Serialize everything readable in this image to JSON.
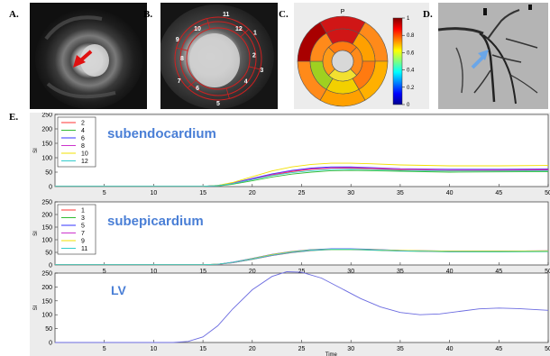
{
  "panel_labels": {
    "a": "A.",
    "b": "B.",
    "c": "C.",
    "d": "D.",
    "e": "E."
  },
  "panel_b_segments": [
    "11",
    "12",
    "1",
    "2",
    "3",
    "4",
    "5",
    "6",
    "7",
    "8",
    "9",
    "10"
  ],
  "bullseye": {
    "title": "P",
    "colorbar_ticks": [
      "1",
      "0.8",
      "0.6",
      "0.4",
      "0.2",
      "0"
    ]
  },
  "colors": {
    "plot_title": "#4a7fd6",
    "figure_bg": "#ececec",
    "arrow_red": "#e01010",
    "arrow_blue": "#6aa6e8"
  },
  "chart_data": [
    {
      "type": "line",
      "title": "subendocardium",
      "ylabel": "SI",
      "xlabel": "",
      "xlim": [
        0,
        50
      ],
      "ylim": [
        0,
        250
      ],
      "xticks": [
        5,
        10,
        15,
        20,
        25,
        30,
        35,
        40,
        45,
        50
      ],
      "yticks": [
        0,
        50,
        100,
        150,
        200,
        250
      ],
      "legend_position": "top-left",
      "series": [
        {
          "name": "2",
          "color": "#ff3333",
          "points": [
            [
              0,
              1
            ],
            [
              15,
              1
            ],
            [
              16.5,
              3
            ],
            [
              18,
              10
            ],
            [
              20,
              25
            ],
            [
              22,
              40
            ],
            [
              24,
              52
            ],
            [
              26,
              60
            ],
            [
              28,
              64
            ],
            [
              30,
              64
            ],
            [
              32,
              62
            ],
            [
              35,
              58
            ],
            [
              40,
              55
            ],
            [
              45,
              56
            ],
            [
              50,
              57
            ]
          ]
        },
        {
          "name": "4",
          "color": "#33bb33",
          "points": [
            [
              0,
              1
            ],
            [
              15,
              1
            ],
            [
              16.5,
              2
            ],
            [
              18,
              8
            ],
            [
              20,
              20
            ],
            [
              22,
              33
            ],
            [
              24,
              43
            ],
            [
              26,
              50
            ],
            [
              28,
              55
            ],
            [
              30,
              56
            ],
            [
              32,
              55
            ],
            [
              35,
              53
            ],
            [
              40,
              50
            ],
            [
              45,
              51
            ],
            [
              50,
              52
            ]
          ]
        },
        {
          "name": "6",
          "color": "#3333ff",
          "points": [
            [
              0,
              1
            ],
            [
              15,
              1
            ],
            [
              16.5,
              4
            ],
            [
              18,
              12
            ],
            [
              20,
              28
            ],
            [
              22,
              44
            ],
            [
              24,
              56
            ],
            [
              26,
              64
            ],
            [
              28,
              68
            ],
            [
              30,
              68
            ],
            [
              32,
              66
            ],
            [
              35,
              62
            ],
            [
              40,
              60
            ],
            [
              45,
              60
            ],
            [
              50,
              61
            ]
          ]
        },
        {
          "name": "8",
          "color": "#cc33cc",
          "points": [
            [
              0,
              1
            ],
            [
              15,
              1
            ],
            [
              16.5,
              3
            ],
            [
              18,
              11
            ],
            [
              20,
              26
            ],
            [
              22,
              42
            ],
            [
              24,
              54
            ],
            [
              26,
              62
            ],
            [
              28,
              65
            ],
            [
              30,
              66
            ],
            [
              32,
              64
            ],
            [
              35,
              61
            ],
            [
              40,
              58
            ],
            [
              45,
              58
            ],
            [
              50,
              59
            ]
          ]
        },
        {
          "name": "10",
          "color": "#f2e000",
          "points": [
            [
              0,
              1
            ],
            [
              15,
              1
            ],
            [
              16.5,
              4
            ],
            [
              18,
              14
            ],
            [
              20,
              34
            ],
            [
              22,
              54
            ],
            [
              24,
              68
            ],
            [
              26,
              77
            ],
            [
              28,
              81
            ],
            [
              30,
              81
            ],
            [
              32,
              79
            ],
            [
              35,
              75
            ],
            [
              40,
              72
            ],
            [
              45,
              72
            ],
            [
              50,
              73
            ]
          ]
        },
        {
          "name": "12",
          "color": "#33cccc",
          "points": [
            [
              0,
              1
            ],
            [
              15,
              1
            ],
            [
              16.5,
              3
            ],
            [
              18,
              10
            ],
            [
              20,
              24
            ],
            [
              22,
              38
            ],
            [
              24,
              48
            ],
            [
              26,
              55
            ],
            [
              28,
              59
            ],
            [
              30,
              60
            ],
            [
              32,
              59
            ],
            [
              35,
              56
            ],
            [
              40,
              54
            ],
            [
              45,
              54
            ],
            [
              50,
              55
            ]
          ]
        }
      ]
    },
    {
      "type": "line",
      "title": "subepicardium",
      "ylabel": "SI",
      "xlabel": "",
      "xlim": [
        0,
        50
      ],
      "ylim": [
        0,
        250
      ],
      "xticks": [
        5,
        10,
        15,
        20,
        25,
        30,
        35,
        40,
        45,
        50
      ],
      "yticks": [
        0,
        50,
        100,
        150,
        200,
        250
      ],
      "legend_position": "top-left",
      "series": [
        {
          "name": "1",
          "color": "#ff3333",
          "points": [
            [
              0,
              1
            ],
            [
              15,
              1
            ],
            [
              16.5,
              3
            ],
            [
              18,
              10
            ],
            [
              20,
              24
            ],
            [
              22,
              40
            ],
            [
              24,
              52
            ],
            [
              26,
              60
            ],
            [
              28,
              63
            ],
            [
              30,
              63
            ],
            [
              32,
              61
            ],
            [
              35,
              57
            ],
            [
              40,
              54
            ],
            [
              45,
              55
            ],
            [
              50,
              56
            ]
          ]
        },
        {
          "name": "3",
          "color": "#33bb33",
          "points": [
            [
              0,
              1
            ],
            [
              15,
              1
            ],
            [
              16.5,
              3
            ],
            [
              18,
              9
            ],
            [
              20,
              22
            ],
            [
              22,
              37
            ],
            [
              24,
              49
            ],
            [
              26,
              57
            ],
            [
              28,
              61
            ],
            [
              30,
              61
            ],
            [
              32,
              59
            ],
            [
              35,
              55
            ],
            [
              40,
              52
            ],
            [
              45,
              52
            ],
            [
              50,
              53
            ]
          ]
        },
        {
          "name": "5",
          "color": "#3333ff",
          "points": [
            [
              0,
              1
            ],
            [
              15,
              1
            ],
            [
              16.5,
              3
            ],
            [
              18,
              11
            ],
            [
              20,
              26
            ],
            [
              22,
              42
            ],
            [
              24,
              54
            ],
            [
              26,
              61
            ],
            [
              28,
              64
            ],
            [
              30,
              64
            ],
            [
              32,
              62
            ],
            [
              35,
              58
            ],
            [
              40,
              55
            ],
            [
              45,
              55
            ],
            [
              50,
              56
            ]
          ]
        },
        {
          "name": "7",
          "color": "#cc33cc",
          "points": [
            [
              0,
              1
            ],
            [
              15,
              1
            ],
            [
              16.5,
              2
            ],
            [
              18,
              9
            ],
            [
              20,
              23
            ],
            [
              22,
              38
            ],
            [
              24,
              50
            ],
            [
              26,
              58
            ],
            [
              28,
              62
            ],
            [
              30,
              62
            ],
            [
              32,
              60
            ],
            [
              35,
              56
            ],
            [
              40,
              53
            ],
            [
              45,
              54
            ],
            [
              50,
              55
            ]
          ]
        },
        {
          "name": "9",
          "color": "#f2e000",
          "points": [
            [
              0,
              1
            ],
            [
              15,
              1
            ],
            [
              16.5,
              3
            ],
            [
              18,
              10
            ],
            [
              20,
              25
            ],
            [
              22,
              41
            ],
            [
              24,
              53
            ],
            [
              26,
              60
            ],
            [
              28,
              63
            ],
            [
              30,
              63
            ],
            [
              32,
              61
            ],
            [
              35,
              58
            ],
            [
              40,
              55
            ],
            [
              45,
              55
            ],
            [
              50,
              56
            ]
          ]
        },
        {
          "name": "11",
          "color": "#33cccc",
          "points": [
            [
              0,
              1
            ],
            [
              15,
              1
            ],
            [
              16.5,
              3
            ],
            [
              18,
              10
            ],
            [
              20,
              24
            ],
            [
              22,
              39
            ],
            [
              24,
              51
            ],
            [
              26,
              59
            ],
            [
              28,
              62
            ],
            [
              30,
              62
            ],
            [
              32,
              60
            ],
            [
              35,
              56
            ],
            [
              40,
              53
            ],
            [
              45,
              53
            ],
            [
              50,
              54
            ]
          ]
        }
      ]
    },
    {
      "type": "line",
      "title": "LV",
      "ylabel": "SI",
      "xlabel": "Time",
      "xlim": [
        0,
        50
      ],
      "ylim": [
        0,
        250
      ],
      "xticks": [
        5,
        10,
        15,
        20,
        25,
        30,
        35,
        40,
        45,
        50
      ],
      "yticks": [
        0,
        50,
        100,
        150,
        200,
        250
      ],
      "series": [
        {
          "color": "#6b6be0",
          "points": [
            [
              0,
              0
            ],
            [
              10,
              0
            ],
            [
              12,
              0
            ],
            [
              13.5,
              4
            ],
            [
              15,
              20
            ],
            [
              16.5,
              60
            ],
            [
              18,
              120
            ],
            [
              20,
              190
            ],
            [
              22,
              238
            ],
            [
              23.5,
              255
            ],
            [
              25,
              253
            ],
            [
              27,
              232
            ],
            [
              29,
              195
            ],
            [
              31,
              158
            ],
            [
              33,
              128
            ],
            [
              35,
              108
            ],
            [
              37,
              100
            ],
            [
              39,
              103
            ],
            [
              41,
              112
            ],
            [
              43,
              121
            ],
            [
              45,
              124
            ],
            [
              47,
              122
            ],
            [
              49,
              118
            ],
            [
              50,
              116
            ]
          ]
        }
      ]
    }
  ]
}
